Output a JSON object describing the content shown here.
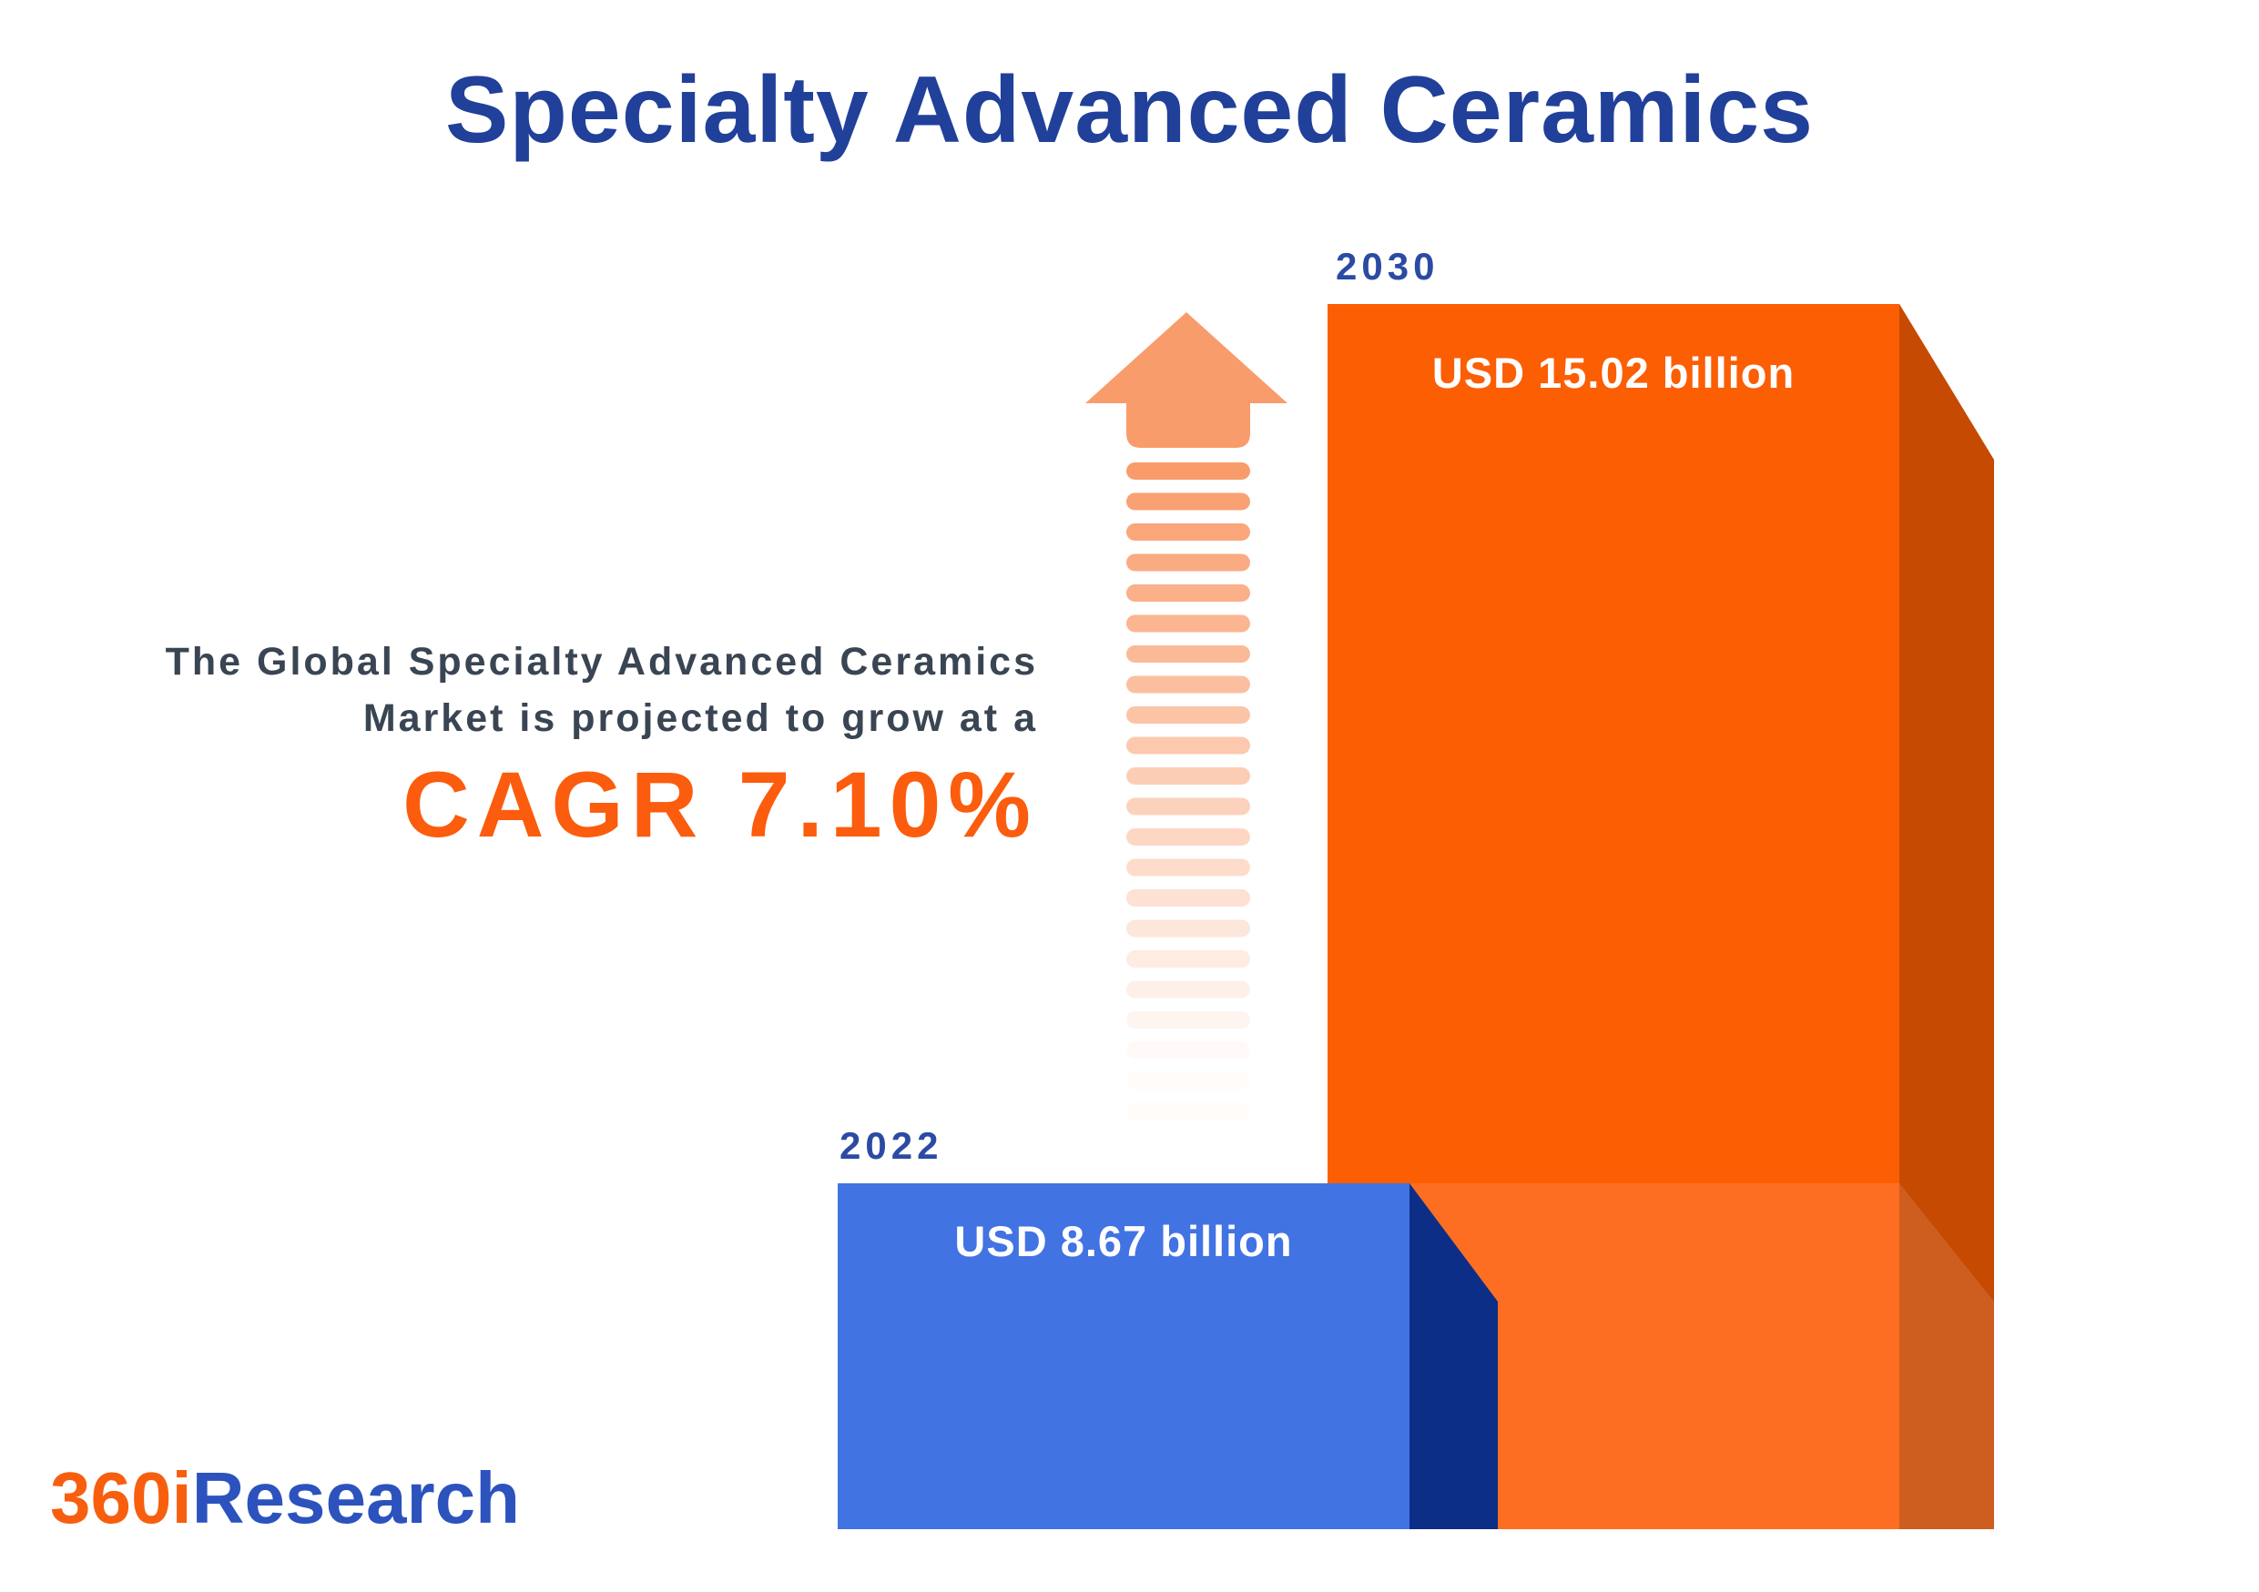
{
  "title": "Specialty Advanced Ceramics",
  "intro": {
    "line1": "The Global Specialty Advanced Ceramics",
    "line2": "Market is projected to grow at a",
    "cagr": "CAGR 7.10%"
  },
  "bars": [
    {
      "year": "2022",
      "value": 8.67,
      "value_label": "USD 8.67 billion",
      "face_color": "#4273E3",
      "side_color": "#0D2E87"
    },
    {
      "year": "2030",
      "value": 15.02,
      "value_label": "USD 15.02 billion",
      "face_color": "#FC5E04",
      "face_color_lower": "#FD6E22",
      "side_color": "#C64A02",
      "side_color_lower": "#CE5D20"
    }
  ],
  "chart_data": {
    "type": "bar",
    "title": "Specialty Advanced Ceramics",
    "categories": [
      "2022",
      "2030"
    ],
    "values": [
      8.67,
      15.02
    ],
    "unit": "USD billion",
    "value_labels": [
      "USD 8.67 billion",
      "USD 15.02 billion"
    ],
    "growth_annotation": "The Global Specialty Advanced Ceramics Market is projected to grow at a CAGR 7.10%",
    "cagr_percent": 7.1,
    "orientation": "vertical",
    "style": "3d-column",
    "bar_colors": [
      "#4273E3",
      "#FC5E04"
    ],
    "bar_side_colors": [
      "#0D2E87",
      "#C64A02"
    ],
    "year_label_color": "#2B4BA3",
    "title_color": "#21409A",
    "annotation_text_color": "#3A4553",
    "annotation_accent_color": "#FB5C0D",
    "legend": "none",
    "gridlines": false
  },
  "logo": {
    "prefix": "360i",
    "suffix": "Research",
    "prefix_color": "#F75F0F",
    "suffix_color": "#2C52BD"
  },
  "decorations": {
    "growth_arrow_color": "#F99C6B",
    "arrow_dash_count": 22
  }
}
